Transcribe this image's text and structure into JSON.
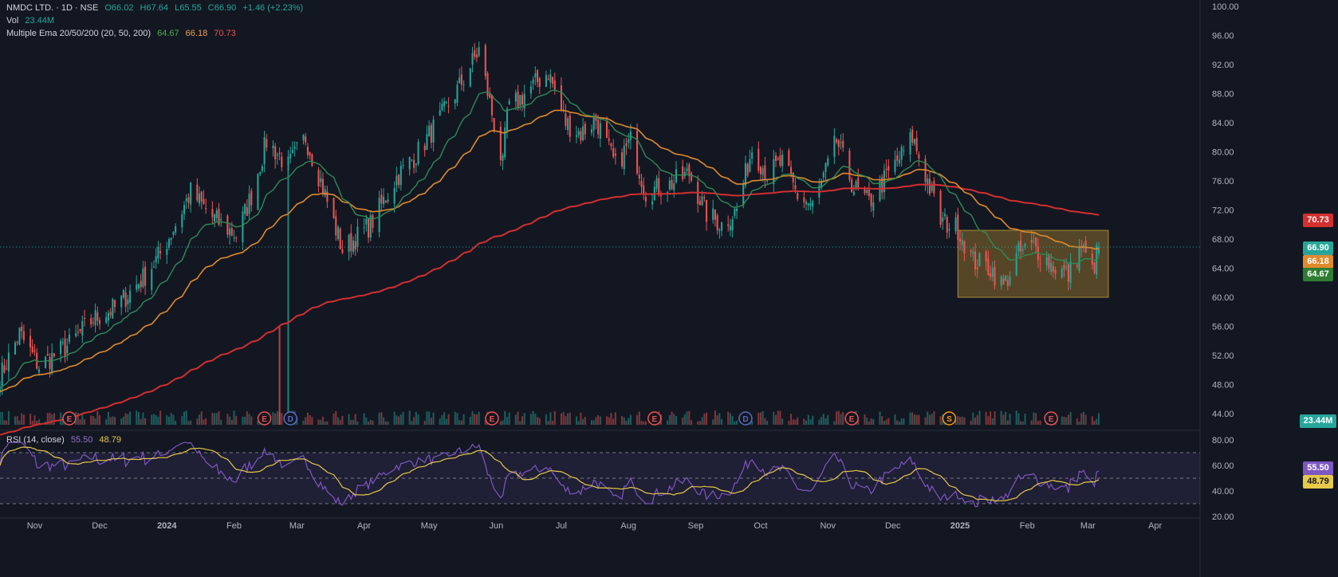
{
  "legend": {
    "symbol": "NMDC LTD. · 1D · NSE",
    "open": "O66.02",
    "high": "H67.64",
    "low": "L65.55",
    "close": "C66.90",
    "change": "+1.46 (+2.23%)",
    "vol_label": "Vol",
    "vol_value": "23.44M",
    "ema_label": "Multiple Ema 20/50/200 (20, 50, 200)",
    "ema20": "64.67",
    "ema50": "66.18",
    "ema200": "70.73",
    "rsi_label": "RSI (14, close)",
    "rsi_value": "55.50",
    "rsi_ma": "48.79"
  },
  "badges": {
    "ema200": "70.73",
    "last": "66.90",
    "ema50": "66.18",
    "ema20": "64.67",
    "volume": "23.44M",
    "rsi": "55.50",
    "rsi_ma": "48.79"
  },
  "colors": {
    "background": "#131722",
    "up": "#26a69a",
    "down": "#ef5350",
    "ema20": "#2e8b57",
    "ema50": "#e08a2c",
    "ema200": "#d32f2f",
    "rsi": "#7e57c2",
    "rsi_ma": "#e6c84a",
    "box": "#8a6d2b"
  },
  "events": [
    {
      "x": "2023-11-17",
      "letter": "E",
      "kind": "earnings"
    },
    {
      "x": "2024-02-15",
      "letter": "E",
      "kind": "earnings"
    },
    {
      "x": "2024-02-27",
      "letter": "D",
      "kind": "dividend"
    },
    {
      "x": "2024-05-30",
      "letter": "E",
      "kind": "earnings"
    },
    {
      "x": "2024-08-13",
      "letter": "E",
      "kind": "earnings"
    },
    {
      "x": "2024-09-24",
      "letter": "D",
      "kind": "dividend"
    },
    {
      "x": "2024-11-12",
      "letter": "E",
      "kind": "earnings"
    },
    {
      "x": "2024-12-27",
      "letter": "S",
      "kind": "split"
    },
    {
      "x": "2025-02-12",
      "letter": "E",
      "kind": "earnings"
    }
  ],
  "chart_data": {
    "type": "candlestick",
    "title": "NMDC LTD. · 1D · NSE",
    "x_range": [
      "2023-10-16",
      "2025-04-21"
    ],
    "price_ylim": [
      44,
      100
    ],
    "price_ticks": [
      "100.00",
      "96.00",
      "92.00",
      "88.00",
      "84.00",
      "80.00",
      "76.00",
      "72.00",
      "68.00",
      "64.00",
      "60.00",
      "56.00",
      "52.00",
      "48.00",
      "44.00"
    ],
    "rsi_ylim": [
      20,
      80
    ],
    "rsi_ticks": [
      "80.00",
      "60.00",
      "40.00",
      "20.00"
    ],
    "rsi_bands": [
      30,
      50,
      70
    ],
    "x_ticks": [
      {
        "x": "2023-11-01",
        "label": "Nov"
      },
      {
        "x": "2023-12-01",
        "label": "Dec"
      },
      {
        "x": "2024-01-01",
        "label": "2024"
      },
      {
        "x": "2024-02-01",
        "label": "Feb"
      },
      {
        "x": "2024-03-01",
        "label": "Mar"
      },
      {
        "x": "2024-04-01",
        "label": "Apr"
      },
      {
        "x": "2024-05-01",
        "label": "May"
      },
      {
        "x": "2024-06-01",
        "label": "Jun"
      },
      {
        "x": "2024-07-01",
        "label": "Jul"
      },
      {
        "x": "2024-08-01",
        "label": "Aug"
      },
      {
        "x": "2024-09-01",
        "label": "Sep"
      },
      {
        "x": "2024-10-01",
        "label": "Oct"
      },
      {
        "x": "2024-11-01",
        "label": "Nov"
      },
      {
        "x": "2024-12-01",
        "label": "Dec"
      },
      {
        "x": "2025-01-01",
        "label": "2025"
      },
      {
        "x": "2025-02-01",
        "label": "Feb"
      },
      {
        "x": "2025-03-01",
        "label": "Mar"
      },
      {
        "x": "2025-04-01",
        "label": "Apr"
      }
    ],
    "close_keypoints": [
      [
        "2023-10-16",
        49
      ],
      [
        "2023-10-25",
        55
      ],
      [
        "2023-11-03",
        50.5
      ],
      [
        "2023-11-17",
        53.5
      ],
      [
        "2023-11-28",
        57
      ],
      [
        "2023-12-08",
        58.5
      ],
      [
        "2023-12-22",
        63
      ],
      [
        "2023-12-29",
        66
      ],
      [
        "2024-01-05",
        70
      ],
      [
        "2024-01-12",
        74.5
      ],
      [
        "2024-01-22",
        71
      ],
      [
        "2024-02-02",
        68.5
      ],
      [
        "2024-02-09",
        74
      ],
      [
        "2024-02-16",
        81.5
      ],
      [
        "2024-02-26",
        78
      ],
      [
        "2024-03-05",
        82
      ],
      [
        "2024-03-12",
        76
      ],
      [
        "2024-03-22",
        66.5
      ],
      [
        "2024-04-04",
        70
      ],
      [
        "2024-04-16",
        76.5
      ],
      [
        "2024-04-26",
        80
      ],
      [
        "2024-05-08",
        85.5
      ],
      [
        "2024-05-15",
        89
      ],
      [
        "2024-05-24",
        94
      ],
      [
        "2024-06-04",
        78
      ],
      [
        "2024-06-06",
        85.5
      ],
      [
        "2024-06-14",
        88
      ],
      [
        "2024-06-25",
        91
      ],
      [
        "2024-07-03",
        84
      ],
      [
        "2024-07-10",
        82.5
      ],
      [
        "2024-07-17",
        84.5
      ],
      [
        "2024-07-26",
        78
      ],
      [
        "2024-08-02",
        81.5
      ],
      [
        "2024-08-09",
        74.5
      ],
      [
        "2024-08-20",
        75.5
      ],
      [
        "2024-08-29",
        77
      ],
      [
        "2024-09-06",
        71.5
      ],
      [
        "2024-09-13",
        70
      ],
      [
        "2024-09-20",
        72
      ],
      [
        "2024-09-27",
        80.5
      ],
      [
        "2024-10-04",
        77
      ],
      [
        "2024-10-11",
        78.5
      ],
      [
        "2024-10-18",
        74
      ],
      [
        "2024-10-25",
        72.5
      ],
      [
        "2024-11-01",
        78
      ],
      [
        "2024-11-05",
        81.5
      ],
      [
        "2024-11-13",
        75
      ],
      [
        "2024-11-20",
        73
      ],
      [
        "2024-11-29",
        77
      ],
      [
        "2024-12-05",
        79.5
      ],
      [
        "2024-12-10",
        82
      ],
      [
        "2024-12-17",
        76
      ],
      [
        "2024-12-23",
        70.5
      ],
      [
        "2024-12-31",
        69.5
      ],
      [
        "2025-01-07",
        65
      ],
      [
        "2025-01-15",
        64
      ],
      [
        "2025-01-21",
        61.5
      ],
      [
        "2025-01-28",
        66
      ],
      [
        "2025-02-04",
        67
      ],
      [
        "2025-02-12",
        64.5
      ],
      [
        "2025-02-20",
        63
      ],
      [
        "2025-02-26",
        67
      ],
      [
        "2025-03-03",
        63.5
      ],
      [
        "2025-03-06",
        66.9
      ]
    ],
    "last": {
      "open": 66.02,
      "high": 67.64,
      "low": 65.55,
      "close": 66.9,
      "change": 1.46,
      "change_pct": 2.23,
      "volume": "23.44M"
    },
    "ema": {
      "ema20_last": 64.67,
      "ema50_last": 66.18,
      "ema200_last": 70.73
    },
    "rsi": {
      "last": 55.5,
      "ma_last": 48.79
    },
    "consolidation_box": {
      "x_start": "2024-12-31",
      "x_end": "2025-03-06",
      "y_low": 60,
      "y_high": 69.2
    },
    "volume_spikes": [
      [
        "2024-02-22",
        56
      ],
      [
        "2024-02-26",
        79
      ]
    ]
  }
}
